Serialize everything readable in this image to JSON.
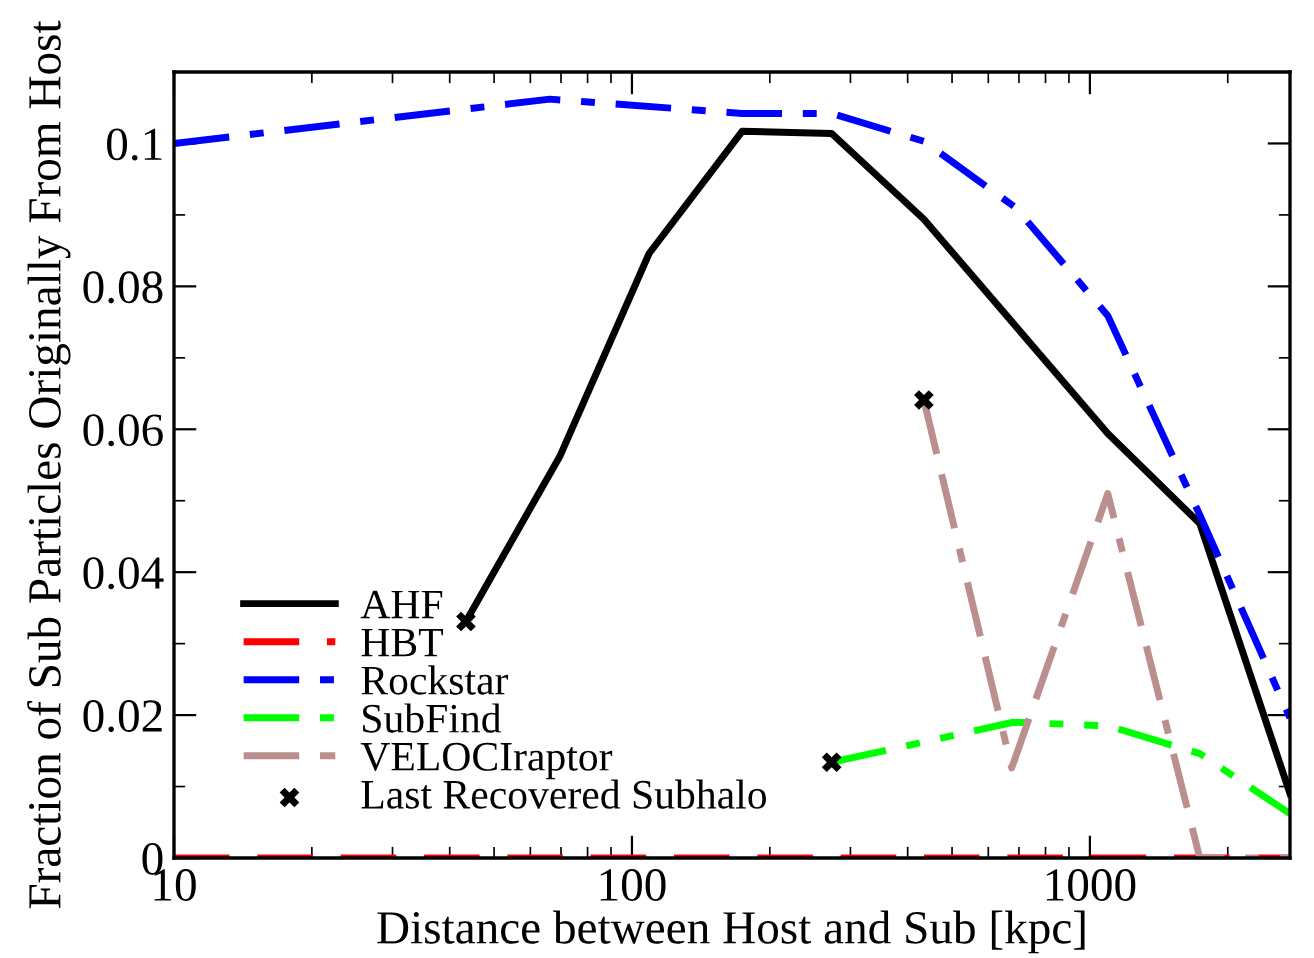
{
  "chart_data": {
    "type": "line",
    "xlabel": "Distance between Host and Sub [kpc]",
    "ylabel": "Fraction of Sub Particles Originally From Host",
    "log": "x",
    "xlim": [
      10,
      2735
    ],
    "xticks": [
      10,
      100,
      1000
    ],
    "ylim": [
      0,
      0.11
    ],
    "yticks": [
      0,
      0.02,
      0.04,
      0.06,
      0.08,
      0.1
    ],
    "grid": false,
    "legend": "bottom left",
    "series": [
      {
        "name": "AHF",
        "color": "#000000",
        "line_style": "solid",
        "x": [
          43.4,
          69.7,
          109,
          174,
          273,
          434,
          1094,
          1738,
          2735
        ],
        "values": [
          0.0331,
          0.0563,
          0.0846,
          0.1017,
          0.1014,
          0.0894,
          0.0594,
          0.0468,
          0.009
        ]
      },
      {
        "name": "HBT",
        "color": "#ff0000",
        "line_style": "dashed",
        "x": [
          10,
          2735
        ],
        "values": [
          0,
          0
        ]
      },
      {
        "name": "Rockstar",
        "color": "#0000ff",
        "line_style": "dashdot",
        "x": [
          10,
          66.2,
          174,
          273,
          434,
          689,
          1094,
          1738,
          2735
        ],
        "values": [
          0.1,
          0.1062,
          0.1042,
          0.1042,
          0.1003,
          0.091,
          0.0759,
          0.048,
          0.0196
        ]
      },
      {
        "name": "SubFind",
        "color": "#00ff00",
        "line_style": "dashdotdot",
        "x": [
          273,
          680,
          1094,
          1738,
          2735
        ],
        "values": [
          0.0134,
          0.019,
          0.0185,
          0.0146,
          0.0062
        ]
      },
      {
        "name": "VELOCIraptor",
        "color": "#bc8f8f",
        "line_style": "dashdashdot",
        "x": [
          434,
          675,
          1094,
          1738,
          2735
        ],
        "values": [
          0.0641,
          0.0126,
          0.051,
          0,
          0
        ]
      },
      {
        "name": "Last Recovered Subhalo",
        "type": "scatter",
        "marker": "cross",
        "color": "#000000",
        "x": [
          43.4,
          434,
          273
        ],
        "values": [
          0.0331,
          0.0641,
          0.0134
        ]
      }
    ]
  }
}
